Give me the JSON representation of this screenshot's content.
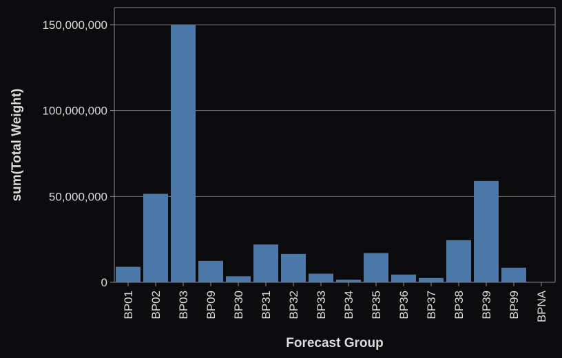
{
  "chart_data": {
    "type": "bar",
    "title": "",
    "xlabel": "Forecast Group",
    "ylabel": "sum(Total Weight)",
    "categories": [
      "BP01",
      "BP02",
      "BP03",
      "BP09",
      "BP30",
      "BP31",
      "BP32",
      "BP33",
      "BP34",
      "BP35",
      "BP36",
      "BP37",
      "BP38",
      "BP39",
      "BP99",
      "BPNA"
    ],
    "values": [
      9000000,
      51500000,
      150000000,
      12500000,
      3500000,
      22000000,
      16500000,
      5000000,
      1500000,
      17000000,
      4500000,
      2500000,
      24500000,
      59000000,
      8500000,
      200000
    ],
    "ylim": [
      0,
      160000000
    ],
    "yticks": [
      0,
      50000000,
      100000000,
      150000000
    ],
    "ytick_labels": [
      "0",
      "50,000,000",
      "100,000,000",
      "150,000,000"
    ],
    "grid": true,
    "colors": {
      "bar": "#4c78a8",
      "background": "#0b0b0e",
      "text": "#dcdcdc",
      "grid": "#6e6e6e"
    }
  }
}
